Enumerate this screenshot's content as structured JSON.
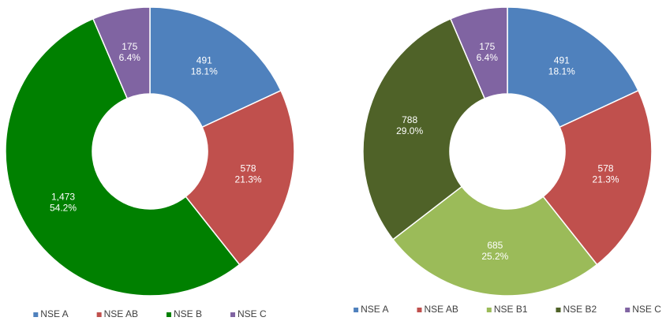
{
  "chart_data": [
    {
      "type": "donut",
      "categories": [
        "NSE A",
        "NSE AB",
        "NSE B",
        "NSE C"
      ],
      "series": [
        {
          "values": [
            491,
            578,
            1473,
            175
          ],
          "value_labels": [
            "491",
            "578",
            "1,473",
            "175"
          ],
          "percentages": [
            18.1,
            21.3,
            54.2,
            6.4
          ],
          "percentage_labels": [
            "18.1%",
            "21.3%",
            "54.2%",
            "6.4%"
          ],
          "colors": [
            "#4f81bd",
            "#c0504d",
            "#008000",
            "#8064a2"
          ]
        }
      ],
      "legend": "bottom"
    },
    {
      "type": "donut",
      "categories": [
        "NSE A",
        "NSE AB",
        "NSE B1",
        "NSE B2",
        "NSE C"
      ],
      "series": [
        {
          "values": [
            491,
            578,
            685,
            788,
            175
          ],
          "value_labels": [
            "491",
            "578",
            "685",
            "788",
            "175"
          ],
          "percentages": [
            18.1,
            21.3,
            25.2,
            29.0,
            6.4
          ],
          "percentage_labels": [
            "18.1%",
            "21.3%",
            "25.2%",
            "29.0%",
            "6.4%"
          ],
          "colors": [
            "#4f81bd",
            "#c0504d",
            "#9bbb59",
            "#4f6228",
            "#8064a2"
          ]
        }
      ],
      "legend": "bottom"
    }
  ]
}
